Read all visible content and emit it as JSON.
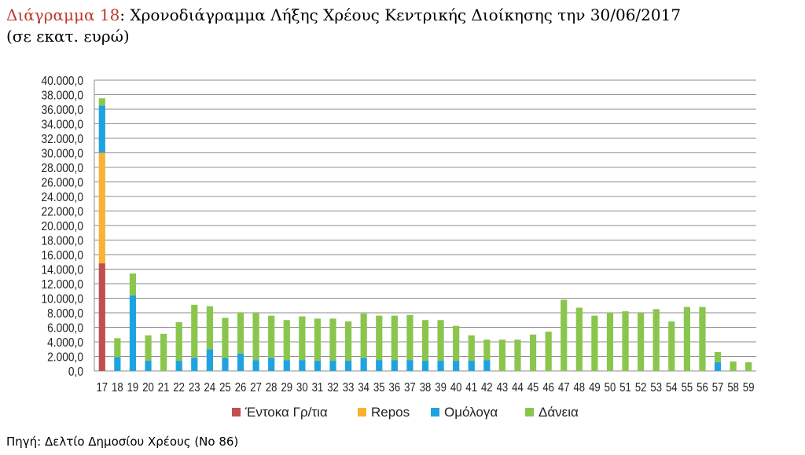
{
  "caption": {
    "label": "Διάγραμμα 18",
    "title": ": Χρονοδιάγραμμα Λήξης Χρέους Κεντρικής Διοίκησης την 30/06/2017",
    "subtitle": "(σε εκατ. ευρώ)"
  },
  "source": "Πηγή: Δελτίο Δημοσίου Χρέους (Νο 86)",
  "chart_data": {
    "type": "bar",
    "stacked": true,
    "categories": [
      "17",
      "18",
      "19",
      "20",
      "21",
      "22",
      "23",
      "24",
      "25",
      "26",
      "27",
      "28",
      "29",
      "30",
      "31",
      "32",
      "33",
      "34",
      "35",
      "36",
      "37",
      "38",
      "39",
      "40",
      "41",
      "42",
      "43",
      "44",
      "45",
      "46",
      "47",
      "48",
      "49",
      "50",
      "51",
      "52",
      "53",
      "54",
      "55",
      "56",
      "57",
      "58",
      "59"
    ],
    "series": [
      {
        "name": "Έντοκα Γρ/τια",
        "color": "#c0504d",
        "values": [
          14800,
          0,
          0,
          0,
          0,
          0,
          0,
          0,
          0,
          0,
          0,
          0,
          0,
          0,
          0,
          0,
          0,
          0,
          0,
          0,
          0,
          0,
          0,
          0,
          0,
          0,
          0,
          0,
          0,
          0,
          0,
          0,
          0,
          0,
          0,
          0,
          0,
          0,
          0,
          0,
          0,
          0,
          0
        ]
      },
      {
        "name": "Repos",
        "color": "#f9b233",
        "values": [
          15200,
          0,
          0,
          0,
          0,
          0,
          0,
          0,
          0,
          0,
          0,
          0,
          0,
          0,
          0,
          0,
          0,
          0,
          0,
          0,
          0,
          0,
          0,
          0,
          0,
          0,
          0,
          0,
          0,
          0,
          0,
          0,
          0,
          0,
          0,
          0,
          0,
          0,
          0,
          0,
          0,
          0,
          0
        ]
      },
      {
        "name": "Ομόλογα",
        "color": "#1fa3e0",
        "values": [
          6500,
          1900,
          10400,
          1400,
          0,
          1400,
          1800,
          3000,
          1800,
          2400,
          1500,
          1800,
          1500,
          1500,
          1400,
          1400,
          1400,
          1800,
          1500,
          1500,
          1500,
          1400,
          1400,
          1400,
          1400,
          1500,
          0,
          0,
          0,
          0,
          0,
          0,
          0,
          0,
          0,
          0,
          0,
          0,
          0,
          0,
          1200,
          0,
          0
        ]
      },
      {
        "name": "Δάνεια",
        "color": "#8ac64d",
        "values": [
          1000,
          2600,
          3000,
          3500,
          5100,
          5300,
          7300,
          5900,
          5500,
          5600,
          6500,
          5800,
          5500,
          6000,
          5800,
          5800,
          5400,
          6100,
          6100,
          6100,
          6200,
          5600,
          5600,
          4800,
          3500,
          2800,
          4300,
          4300,
          5000,
          5400,
          9800,
          8700,
          7600,
          8000,
          8200,
          8000,
          8500,
          6800,
          8800,
          8800,
          1400,
          1300,
          1200
        ]
      }
    ],
    "y_ticks": [
      "0,0",
      "2.000,0",
      "4.000,0",
      "6.000,0",
      "8.000,0",
      "10.000,0",
      "12.000,0",
      "14.000,0",
      "16.000,0",
      "18.000,0",
      "20.000,0",
      "22.000,0",
      "24.000,0",
      "26.000,0",
      "28.000,0",
      "30.000,0",
      "32.000,0",
      "34.000,0",
      "36.000,0",
      "38.000,0",
      "40.000,0"
    ],
    "ylim": [
      0,
      40000
    ],
    "grid": true,
    "legend_position": "bottom"
  }
}
